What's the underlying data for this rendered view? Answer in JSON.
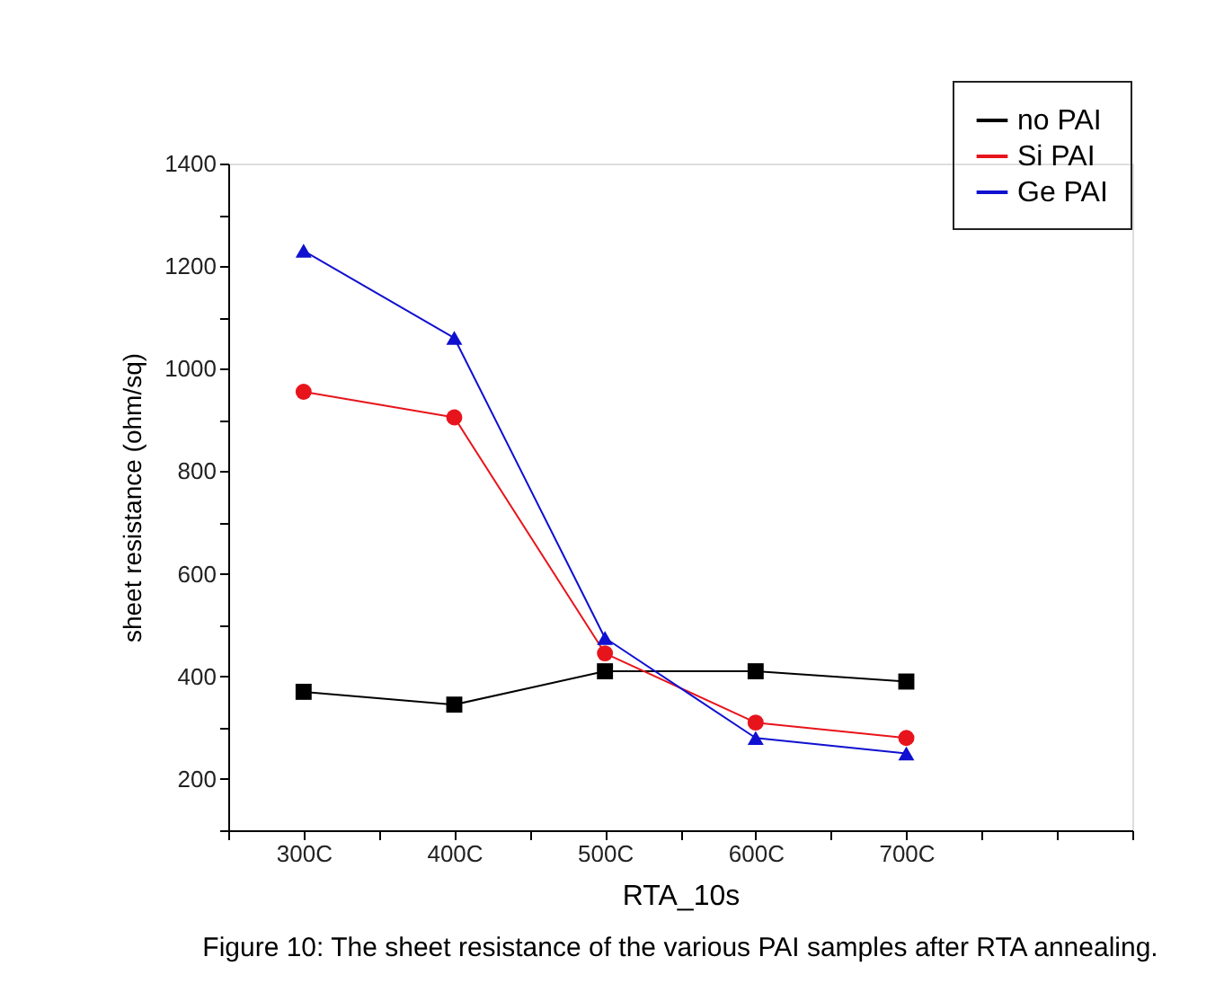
{
  "chart_data": {
    "type": "line",
    "xlabel": "RTA_10s",
    "ylabel": "sheet resistance (ohm/sq)",
    "x": [
      300,
      400,
      500,
      600,
      700
    ],
    "xlim": [
      250,
      850
    ],
    "xticks": [
      {
        "value": 250,
        "label": null
      },
      {
        "value": 300,
        "label": "300C"
      },
      {
        "value": 350,
        "label": null
      },
      {
        "value": 400,
        "label": "400C"
      },
      {
        "value": 450,
        "label": null
      },
      {
        "value": 500,
        "label": "500C"
      },
      {
        "value": 550,
        "label": null
      },
      {
        "value": 600,
        "label": "600C"
      },
      {
        "value": 650,
        "label": null
      },
      {
        "value": 700,
        "label": "700C"
      },
      {
        "value": 750,
        "label": null
      },
      {
        "value": 800,
        "label": null
      },
      {
        "value": 850,
        "label": null
      }
    ],
    "ylim": [
      100,
      1400
    ],
    "yticks": [
      {
        "value": 100,
        "label": null
      },
      200,
      {
        "value": 300,
        "label": null
      },
      400,
      {
        "value": 500,
        "label": null
      },
      600,
      {
        "value": 700,
        "label": null
      },
      800,
      {
        "value": 900,
        "label": null
      },
      1000,
      {
        "value": 1100,
        "label": null
      },
      1200,
      {
        "value": 1300,
        "label": null
      },
      1400
    ],
    "series": [
      {
        "name": "no PAI",
        "color": "#000000",
        "marker": "square",
        "values": [
          370,
          345,
          410,
          410,
          390
        ]
      },
      {
        "name": "Si PAI",
        "color": "#e8141c",
        "marker": "circle",
        "values": [
          955,
          905,
          445,
          310,
          280
        ]
      },
      {
        "name": "Ge PAI",
        "color": "#1010d0",
        "marker": "triangle",
        "values": [
          1230,
          1060,
          475,
          280,
          250
        ]
      }
    ],
    "legend": "top right",
    "grid": false,
    "annotations": [
      "Figure 10: The sheet resistance of the various PAI samples after RTA annealing."
    ]
  }
}
